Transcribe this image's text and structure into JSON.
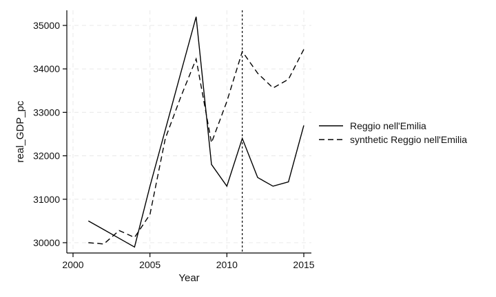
{
  "chart_data": {
    "type": "line",
    "title": "",
    "xlabel": "Year",
    "ylabel": "real_GDP_pc",
    "xlim": [
      2000,
      2015
    ],
    "ylim": [
      30000,
      35000
    ],
    "xticks": [
      2000,
      2005,
      2010,
      2015
    ],
    "yticks": [
      30000,
      31000,
      32000,
      33000,
      34000,
      35000
    ],
    "grid": true,
    "legend_position": "right",
    "vertical_line_x": 2011,
    "series": [
      {
        "name": "Reggio nell'Emilia",
        "style": "solid",
        "color": "#000000",
        "x": [
          2001,
          2002,
          2003,
          2004,
          2005,
          2006,
          2007,
          2008,
          2009,
          2010,
          2011,
          2012,
          2013,
          2014,
          2015
        ],
        "values": [
          30500,
          30300,
          30100,
          29900,
          31300,
          32600,
          33900,
          35200,
          31800,
          31300,
          32400,
          31500,
          31300,
          31400,
          32700
        ]
      },
      {
        "name": "synthetic Reggio nell'Emilia",
        "style": "dashed",
        "color": "#000000",
        "x": [
          2001,
          2002,
          2003,
          2004,
          2005,
          2006,
          2007,
          2008,
          2009,
          2010,
          2011,
          2012,
          2013,
          2014,
          2015
        ],
        "values": [
          30000,
          29970,
          30280,
          30120,
          30650,
          32400,
          33350,
          34230,
          32300,
          33250,
          34400,
          33900,
          33560,
          33760,
          34450
        ]
      }
    ]
  }
}
